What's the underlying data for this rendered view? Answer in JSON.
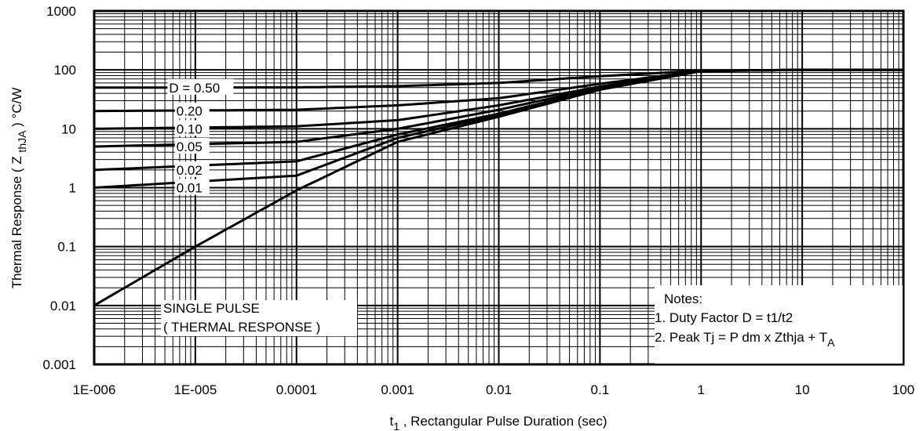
{
  "chart_data": {
    "type": "line",
    "title": "",
    "x_scale": "log",
    "y_scale": "log",
    "xlim": [
      1e-06,
      100
    ],
    "ylim": [
      0.001,
      1000
    ],
    "grid": true,
    "x_ticks": [
      "1E-006",
      "1E-005",
      "0.0001",
      "0.001",
      "0.01",
      "0.1",
      "1",
      "10",
      "100"
    ],
    "y_ticks": [
      "0.001",
      "0.01",
      "0.1",
      "1",
      "10",
      "100",
      "1000"
    ],
    "xlabel": {
      "prefix": "t",
      "sub": "1",
      "rest": " , Rectangular Pulse Duration (sec)"
    },
    "ylabel": {
      "prefix": "Thermal Response ( Z ",
      "sub": "thJA",
      "rest": " ) °C/W"
    },
    "series_labels": [
      {
        "text": "D = 0.50",
        "x": 5.5e-06,
        "y": 50
      },
      {
        "text": "0.20",
        "x": 6.5e-06,
        "y": 20
      },
      {
        "text": "0.10",
        "x": 6.5e-06,
        "y": 10
      },
      {
        "text": "0.05",
        "x": 6.5e-06,
        "y": 5
      },
      {
        "text": "0.02",
        "x": 6.5e-06,
        "y": 2
      },
      {
        "text": "0.01",
        "x": 6.5e-06,
        "y": 1
      }
    ],
    "series": [
      {
        "name": "D = 0.50",
        "points": [
          [
            1e-06,
            50
          ],
          [
            0.0001,
            50.5
          ],
          [
            0.001,
            53
          ],
          [
            0.01,
            60
          ],
          [
            0.1,
            78
          ],
          [
            1,
            97
          ],
          [
            10,
            100
          ],
          [
            100,
            100
          ]
        ]
      },
      {
        "name": "0.20",
        "points": [
          [
            1e-06,
            20
          ],
          [
            0.0001,
            21
          ],
          [
            0.001,
            25
          ],
          [
            0.01,
            33
          ],
          [
            0.1,
            58
          ],
          [
            1,
            96
          ],
          [
            10,
            100
          ],
          [
            100,
            100
          ]
        ]
      },
      {
        "name": "0.10",
        "points": [
          [
            1e-06,
            10
          ],
          [
            0.0001,
            11
          ],
          [
            0.001,
            14
          ],
          [
            0.01,
            25
          ],
          [
            0.1,
            52
          ],
          [
            1,
            96
          ],
          [
            10,
            100
          ],
          [
            100,
            100
          ]
        ]
      },
      {
        "name": "0.05",
        "points": [
          [
            1e-06,
            5
          ],
          [
            0.0001,
            6
          ],
          [
            0.001,
            10
          ],
          [
            0.01,
            21
          ],
          [
            0.1,
            50
          ],
          [
            1,
            96
          ],
          [
            10,
            100
          ],
          [
            100,
            100
          ]
        ]
      },
      {
        "name": "0.02",
        "points": [
          [
            1e-06,
            2
          ],
          [
            0.0001,
            2.8
          ],
          [
            0.001,
            8
          ],
          [
            0.01,
            18
          ],
          [
            0.1,
            48
          ],
          [
            1,
            96
          ],
          [
            10,
            100
          ],
          [
            100,
            100
          ]
        ]
      },
      {
        "name": "0.01",
        "points": [
          [
            1e-06,
            1
          ],
          [
            0.0001,
            1.6
          ],
          [
            0.001,
            7
          ],
          [
            0.01,
            17
          ],
          [
            0.1,
            47
          ],
          [
            1,
            96
          ],
          [
            10,
            100
          ],
          [
            100,
            100
          ]
        ]
      },
      {
        "name": "SINGLE PULSE",
        "points": [
          [
            1e-06,
            0.01
          ],
          [
            1e-05,
            0.1
          ],
          [
            0.0001,
            0.9
          ],
          [
            0.001,
            6
          ],
          [
            0.01,
            16
          ],
          [
            0.1,
            46
          ],
          [
            1,
            95
          ],
          [
            10,
            100
          ],
          [
            100,
            100
          ]
        ]
      }
    ],
    "annotation": {
      "line1": "SINGLE PULSE",
      "line2": "( THERMAL RESPONSE )"
    },
    "notes": {
      "title": "Notes:",
      "line1": "1. Duty Factor D = t1/t2",
      "line2_prefix": "2. Peak Tj = P dm x Zthja + T",
      "line2_sub": "A"
    }
  }
}
